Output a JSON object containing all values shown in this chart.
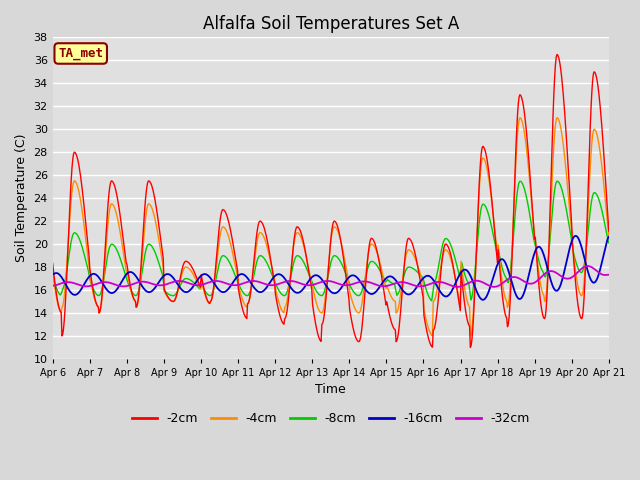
{
  "title": "Alfalfa Soil Temperatures Set A",
  "xlabel": "Time",
  "ylabel": "Soil Temperature (C)",
  "ylim": [
    10,
    38
  ],
  "yticks": [
    10,
    12,
    14,
    16,
    18,
    20,
    22,
    24,
    26,
    28,
    30,
    32,
    34,
    36,
    38
  ],
  "date_labels": [
    "Apr 6",
    "Apr 7",
    "Apr 8",
    "Apr 9",
    "Apr 10",
    "Apr 11",
    "Apr 12",
    "Apr 13",
    "Apr 14",
    "Apr 15",
    "Apr 16",
    "Apr 17",
    "Apr 18",
    "Apr 19",
    "Apr 20",
    "Apr 21"
  ],
  "series_colors": {
    "-2cm": "#FF0000",
    "-4cm": "#FF8C00",
    "-8cm": "#00CC00",
    "-16cm": "#0000CC",
    "-32cm": "#CC00CC"
  },
  "legend_items": [
    "-2cm",
    "-4cm",
    "-8cm",
    "-16cm",
    "-32cm"
  ],
  "annotation_text": "TA_met",
  "annotation_box_color": "#FFFF99",
  "annotation_text_color": "#8B0000",
  "bg_color": "#D8D8D8",
  "plot_bg_color": "#E0E0E0",
  "grid_color": "#FFFFFF",
  "title_fontsize": 12
}
